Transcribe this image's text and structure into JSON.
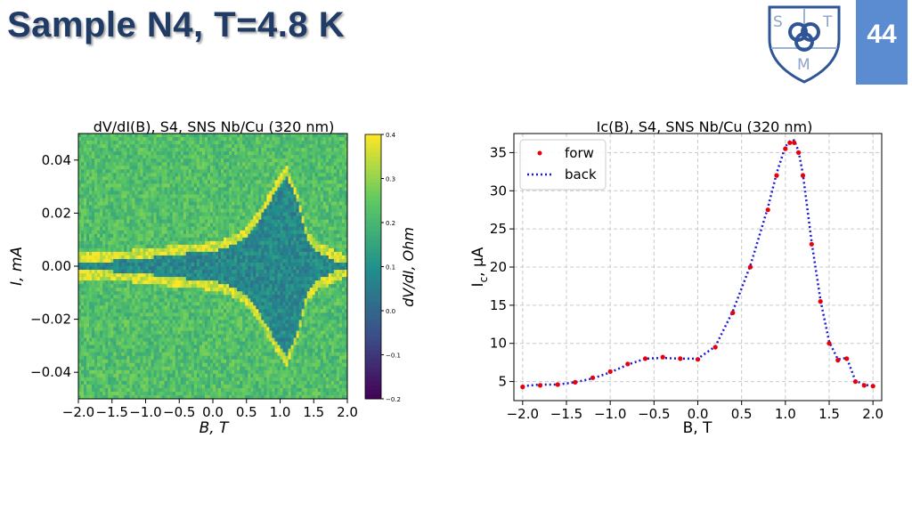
{
  "slide": {
    "title": "Sample N4, T=4.8 K",
    "page_number": "44",
    "logo": {
      "letters": [
        "S",
        "T",
        "M"
      ],
      "color": "#2f5597"
    }
  },
  "chart_data": [
    {
      "type": "heatmap",
      "title": "dV/dI(B), S4, SNS Nb/Cu (320 nm)",
      "xlabel": "B, T",
      "ylabel": "I, mA",
      "xlim": [
        -2.0,
        2.0
      ],
      "ylim": [
        -0.05,
        0.05
      ],
      "x_ticks": [
        -2.0,
        -1.5,
        -1.0,
        -0.5,
        0.0,
        0.5,
        1.0,
        1.5,
        2.0
      ],
      "x_tick_labels": [
        "−2.0",
        "−1.5",
        "−1.0",
        "−0.5",
        "0.0",
        "0.5",
        "1.0",
        "1.5",
        "2.0"
      ],
      "y_ticks": [
        0.04,
        0.02,
        0.0,
        -0.02,
        -0.04
      ],
      "y_tick_labels": [
        "0.04",
        "0.02",
        "0.00",
        "−0.02",
        "−0.04"
      ],
      "colorbar": {
        "label": "dV/dI, Ohm",
        "range": [
          -0.2,
          0.4
        ],
        "ticks": [
          0.4,
          0.3,
          0.2,
          0.1,
          0.0,
          -0.1,
          -0.2
        ],
        "tick_labels": [
          "0.4",
          "0.3",
          "0.2",
          "0.1",
          "0.0",
          "−0.1",
          "−0.2"
        ],
        "colormap": "viridis"
      },
      "critical_current_boundary": {
        "B": [
          -2.0,
          -1.5,
          -1.0,
          -0.5,
          0.0,
          0.25,
          0.5,
          0.75,
          1.0,
          1.1,
          1.25,
          1.4,
          1.55,
          1.7,
          1.85,
          2.0
        ],
        "Ic_mA": [
          0.0015,
          0.002,
          0.003,
          0.0045,
          0.0055,
          0.0075,
          0.011,
          0.02,
          0.031,
          0.034,
          0.025,
          0.01,
          0.005,
          0.004,
          0.0015,
          0.001
        ]
      },
      "zero_voltage_value": 0.08,
      "normal_state_value": 0.22,
      "boundary_peak_value": 0.36
    },
    {
      "type": "scatter",
      "title": "Ic(B), S4, SNS Nb/Cu (320 nm)",
      "xlabel": "B, T",
      "ylabel": "Ic, μA",
      "ylabel_main": "I",
      "ylabel_sub": "c",
      "ylabel_tail": ", μA",
      "xlim": [
        -2.1,
        2.1
      ],
      "ylim": [
        2.5,
        37.5
      ],
      "grid": true,
      "x_ticks": [
        -2.0,
        -1.5,
        -1.0,
        -0.5,
        0.0,
        0.5,
        1.0,
        1.5,
        2.0
      ],
      "x_tick_labels": [
        "−2.0",
        "−1.5",
        "−1.0",
        "−0.5",
        "0.0",
        "0.5",
        "1.0",
        "1.5",
        "2.0"
      ],
      "y_ticks": [
        5,
        10,
        15,
        20,
        25,
        30,
        35
      ],
      "y_tick_labels": [
        "5",
        "10",
        "15",
        "20",
        "25",
        "30",
        "35"
      ],
      "legend_position": "top-left",
      "series": [
        {
          "name": "forw",
          "style": "dots",
          "color": "#e8000b",
          "x": [
            -2.0,
            -1.8,
            -1.6,
            -1.4,
            -1.2,
            -1.0,
            -0.8,
            -0.6,
            -0.4,
            -0.2,
            0.0,
            0.2,
            0.4,
            0.6,
            0.8,
            0.9,
            1.0,
            1.05,
            1.1,
            1.15,
            1.2,
            1.3,
            1.4,
            1.5,
            1.6,
            1.7,
            1.8,
            1.9,
            2.0
          ],
          "y": [
            4.3,
            4.5,
            4.6,
            4.9,
            5.5,
            6.3,
            7.3,
            8.0,
            8.2,
            8.0,
            7.9,
            9.5,
            14.0,
            20.0,
            27.5,
            32.0,
            35.5,
            36.3,
            36.3,
            35.0,
            32.0,
            23.0,
            15.5,
            10.0,
            7.8,
            8.0,
            5.0,
            4.5,
            4.4
          ]
        },
        {
          "name": "back",
          "style": "dotted-line",
          "color": "#1a1ad6",
          "x": [
            -2.0,
            -1.8,
            -1.6,
            -1.4,
            -1.2,
            -1.0,
            -0.8,
            -0.6,
            -0.4,
            -0.2,
            0.0,
            0.2,
            0.4,
            0.6,
            0.8,
            0.9,
            1.0,
            1.05,
            1.1,
            1.15,
            1.2,
            1.3,
            1.4,
            1.5,
            1.6,
            1.7,
            1.8,
            1.9,
            2.0
          ],
          "y": [
            4.4,
            4.6,
            4.6,
            4.9,
            5.4,
            6.2,
            7.2,
            8.0,
            8.1,
            8.0,
            8.0,
            9.6,
            14.2,
            20.2,
            27.8,
            32.3,
            35.8,
            36.5,
            36.6,
            35.2,
            32.2,
            23.3,
            15.7,
            10.2,
            7.9,
            8.1,
            5.1,
            4.6,
            4.4
          ]
        }
      ]
    }
  ]
}
